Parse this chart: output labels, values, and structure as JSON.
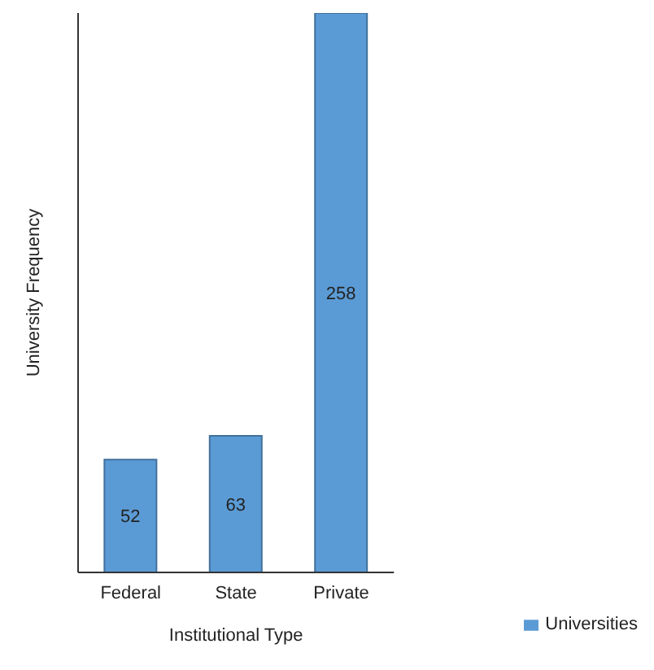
{
  "chart_data": {
    "type": "bar",
    "xlabel": "Institutional Type",
    "ylabel": "University Frequency",
    "categories": [
      "Federal",
      "State",
      "Private"
    ],
    "series": [
      {
        "name": "Universities",
        "color": "#5b9bd5",
        "values": [
          52,
          63,
          258
        ]
      }
    ],
    "data_labels": true,
    "legend": "bottom right",
    "grid": false
  }
}
